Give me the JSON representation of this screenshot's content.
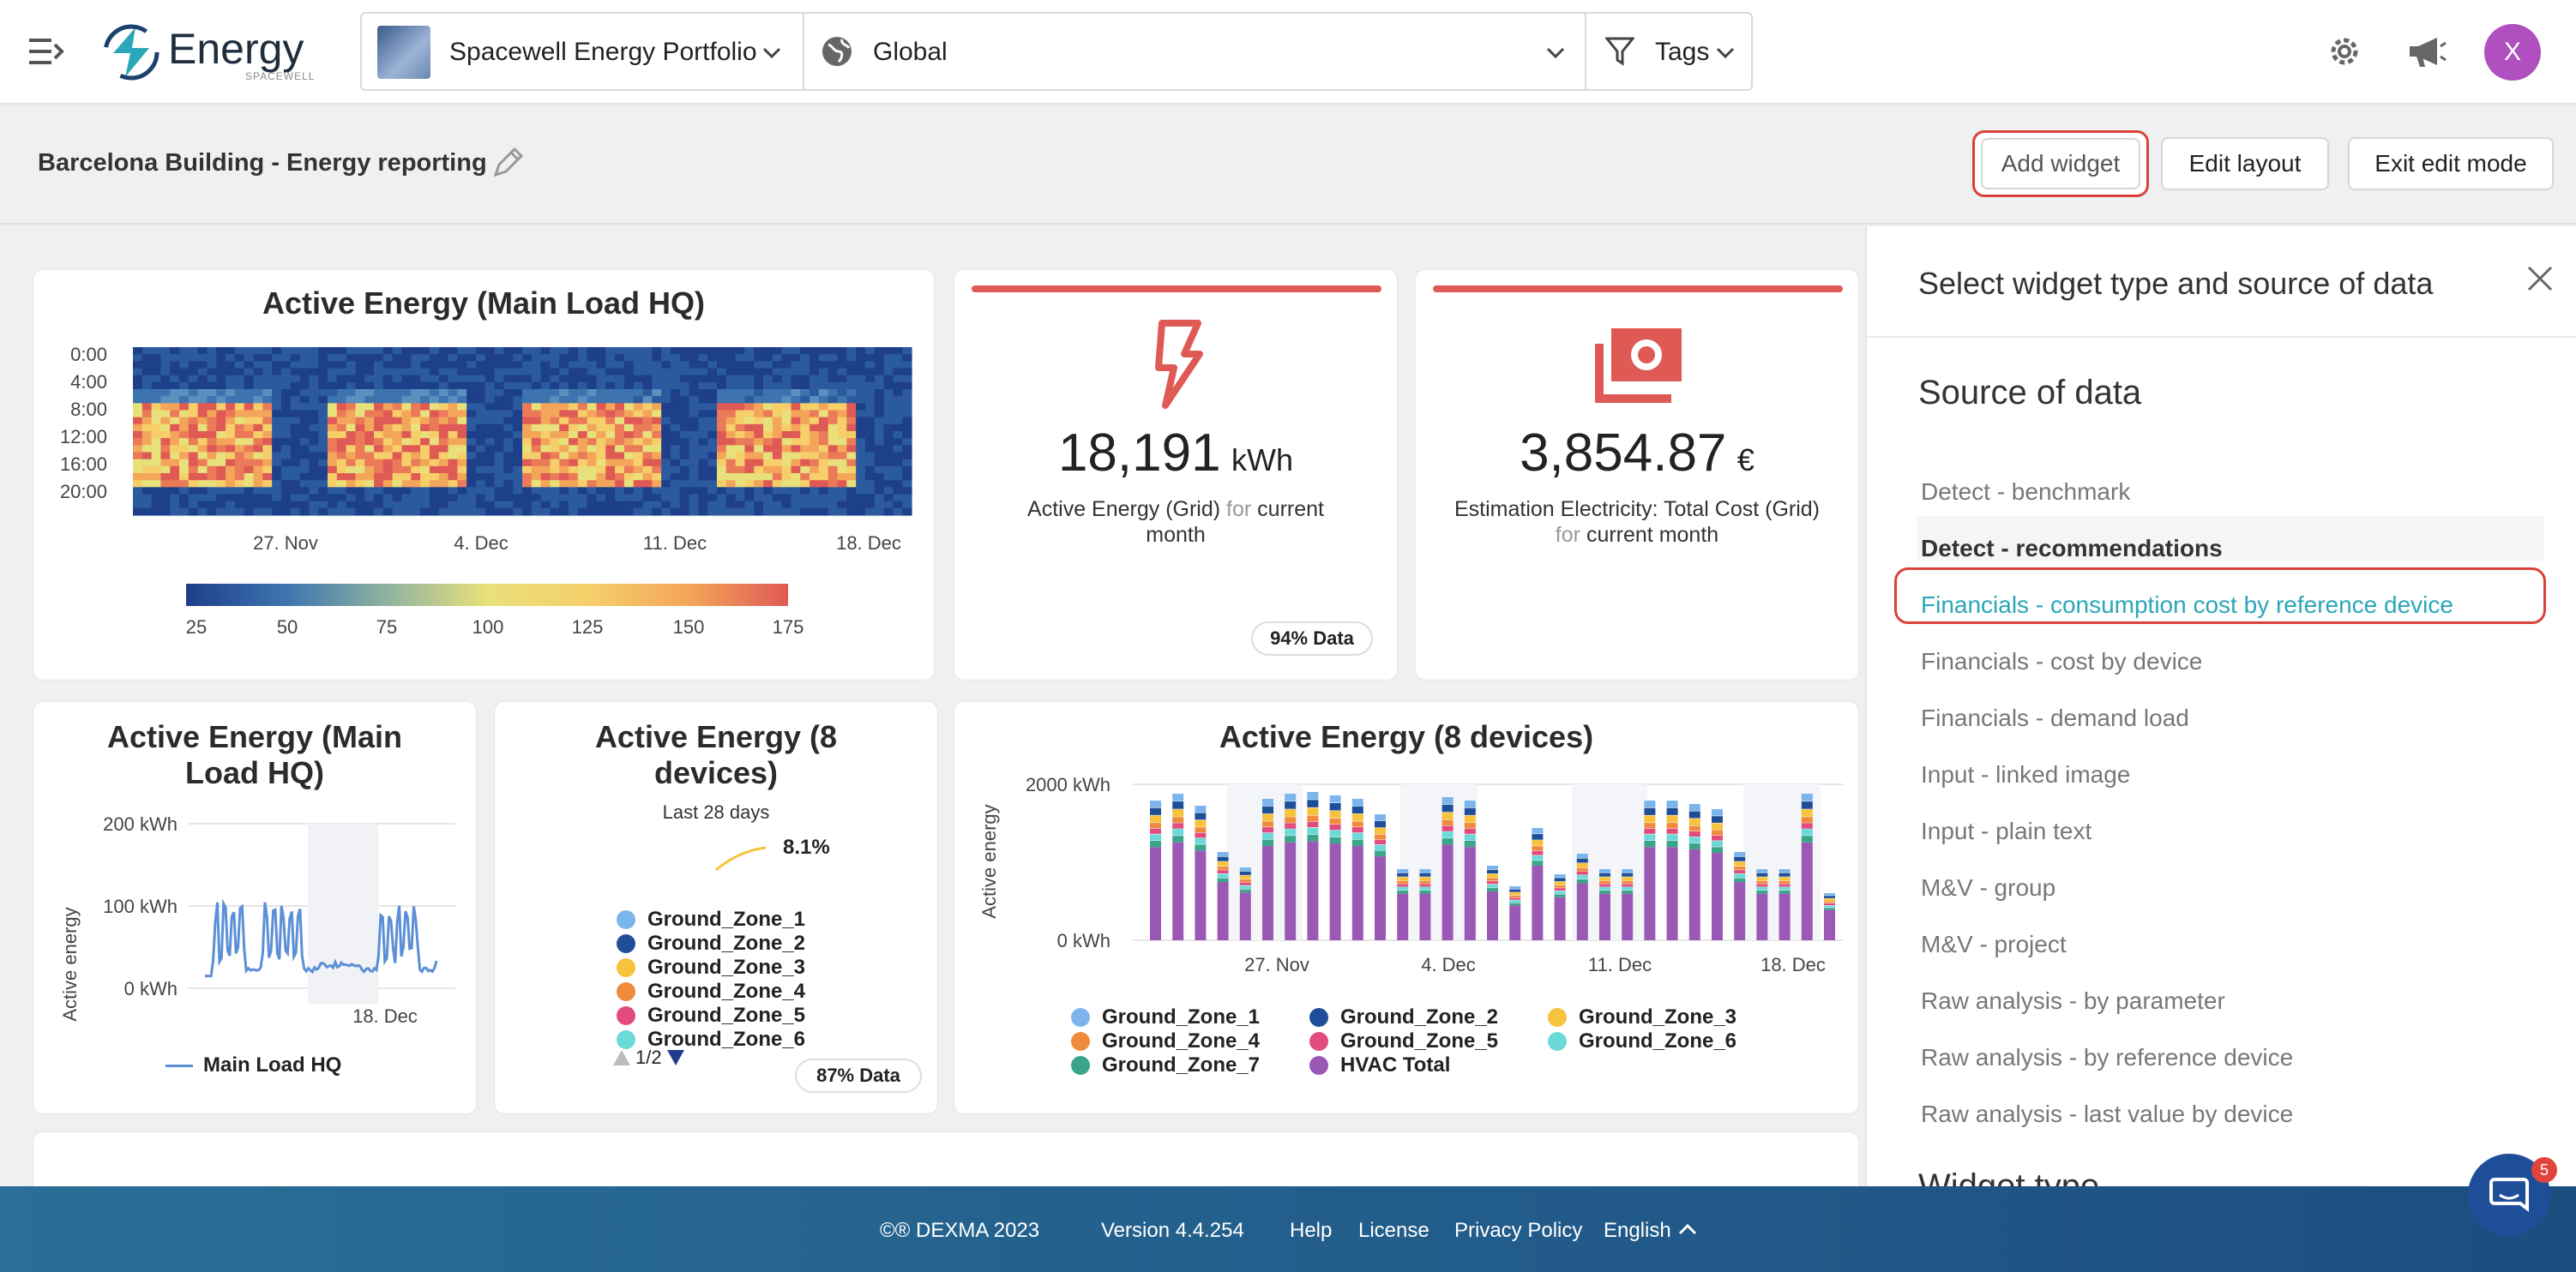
{
  "app": {
    "brand": "Energy",
    "brand_sub": "SPACEWELL"
  },
  "topbar": {
    "portfolio": "Spacewell Energy Portfolio",
    "location": "Global",
    "tags": "Tags",
    "avatar_initial": "X"
  },
  "page": {
    "title": "Barcelona Building - Energy reporting",
    "buttons": {
      "add_widget": "Add widget",
      "edit_layout": "Edit layout",
      "exit_edit": "Exit edit mode"
    }
  },
  "heatmap_card": {
    "title": "Active Energy (Main Load HQ)",
    "y_ticks": [
      "0:00",
      "4:00",
      "8:00",
      "12:00",
      "16:00",
      "20:00"
    ],
    "x_ticks": [
      "27. Nov",
      "4. Dec",
      "11. Dec",
      "18. Dec"
    ],
    "scale_ticks": [
      "25",
      "50",
      "75",
      "100",
      "125",
      "150",
      "175"
    ]
  },
  "kpi1": {
    "value": "18,191",
    "unit": "kWh",
    "label_a": "Active Energy (Grid)",
    "label_for": "for",
    "label_b": "current month",
    "badge": "94% Data",
    "accent": "#e05a55"
  },
  "kpi2": {
    "value": "3,854.87",
    "unit": "€",
    "label_a": "Estimation Electricity: Total Cost (Grid)",
    "label_for": "for",
    "label_b": "current month",
    "accent": "#e05a55"
  },
  "line_card": {
    "title": "Active Energy (Main Load HQ)",
    "ylabel": "Active energy",
    "y_ticks": [
      "200 kWh",
      "100 kWh",
      "0 kWh"
    ],
    "x_ticks": [
      "18. Dec"
    ],
    "legend": "Main Load HQ"
  },
  "spark_card": {
    "title": "Active Energy (8 devices)",
    "subtitle": "Last 28 days",
    "value": "8.1%",
    "legend": [
      {
        "name": "Ground_Zone_1",
        "color": "#7cb5ec"
      },
      {
        "name": "Ground_Zone_2",
        "color": "#1f4e99"
      },
      {
        "name": "Ground_Zone_3",
        "color": "#f7c23c"
      },
      {
        "name": "Ground_Zone_4",
        "color": "#f08a3c"
      },
      {
        "name": "Ground_Zone_5",
        "color": "#e14b7d"
      },
      {
        "name": "Ground_Zone_6",
        "color": "#6cd9d9"
      }
    ],
    "pager": "1/2",
    "badge": "87% Data"
  },
  "bar_card": {
    "title": "Active Energy (8 devices)",
    "ylabel": "Active energy",
    "y_ticks": [
      "2000 kWh",
      "0 kWh"
    ],
    "x_ticks": [
      "27. Nov",
      "4. Dec",
      "11. Dec",
      "18. Dec"
    ],
    "legend": [
      {
        "name": "Ground_Zone_1",
        "color": "#7cb5ec"
      },
      {
        "name": "Ground_Zone_2",
        "color": "#1f4e99"
      },
      {
        "name": "Ground_Zone_3",
        "color": "#f7c23c"
      },
      {
        "name": "Ground_Zone_4",
        "color": "#f08a3c"
      },
      {
        "name": "Ground_Zone_5",
        "color": "#e14b7d"
      },
      {
        "name": "Ground_Zone_6",
        "color": "#6cd9d9"
      },
      {
        "name": "Ground_Zone_7",
        "color": "#3aa58a"
      },
      {
        "name": "HVAC Total",
        "color": "#9b59b6"
      }
    ]
  },
  "panel": {
    "title": "Select widget type and source of data",
    "section": "Source of data",
    "items": [
      "Detect - benchmark",
      "Detect - recommendations",
      "Financials - consumption cost by reference device",
      "Financials - cost by device",
      "Financials - demand load",
      "Input - linked image",
      "Input - plain text",
      "M&V - group",
      "M&V - project",
      "Raw analysis - by parameter",
      "Raw analysis - by reference device",
      "Raw analysis - last value by device"
    ],
    "next_section": "Widget type"
  },
  "footer": {
    "copyright": "©® DEXMA 2023",
    "version": "Version 4.4.254",
    "help": "Help",
    "license": "License",
    "privacy": "Privacy Policy",
    "language": "English"
  },
  "chat": {
    "badge": "5"
  },
  "colors": {
    "accent": "#e05a55",
    "teal": "#2aa7b8",
    "highlight": "#d9423a"
  }
}
